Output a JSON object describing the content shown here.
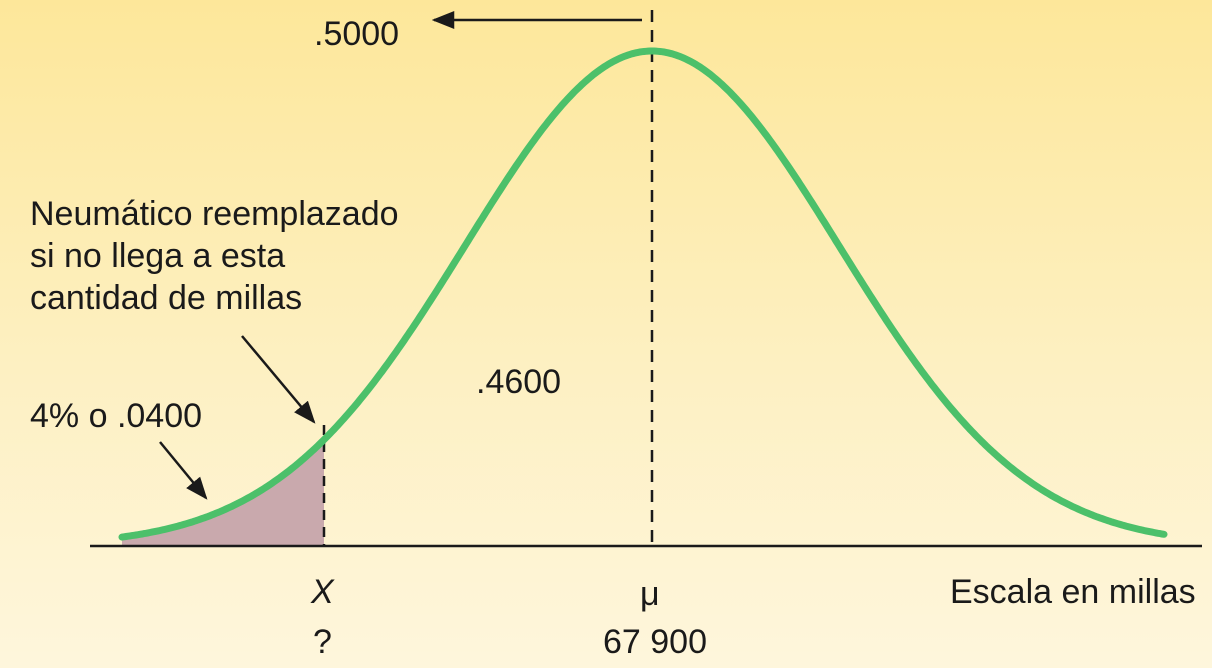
{
  "labels": {
    "top_area": ".5000",
    "middle_area": ".4600",
    "tail_area": "4% o .0400",
    "note_lines": [
      "Neumático reemplazado",
      "si no llega a esta",
      "cantidad de millas"
    ],
    "x_symbol": "X",
    "x_value": "?",
    "mu_symbol": "μ",
    "mu_value": "67 900",
    "axis_label": "Escala en millas"
  },
  "colors": {
    "curve": "#4cc06a",
    "tail_fill": "#c9a9ad",
    "ink": "#1a1a1a"
  }
}
